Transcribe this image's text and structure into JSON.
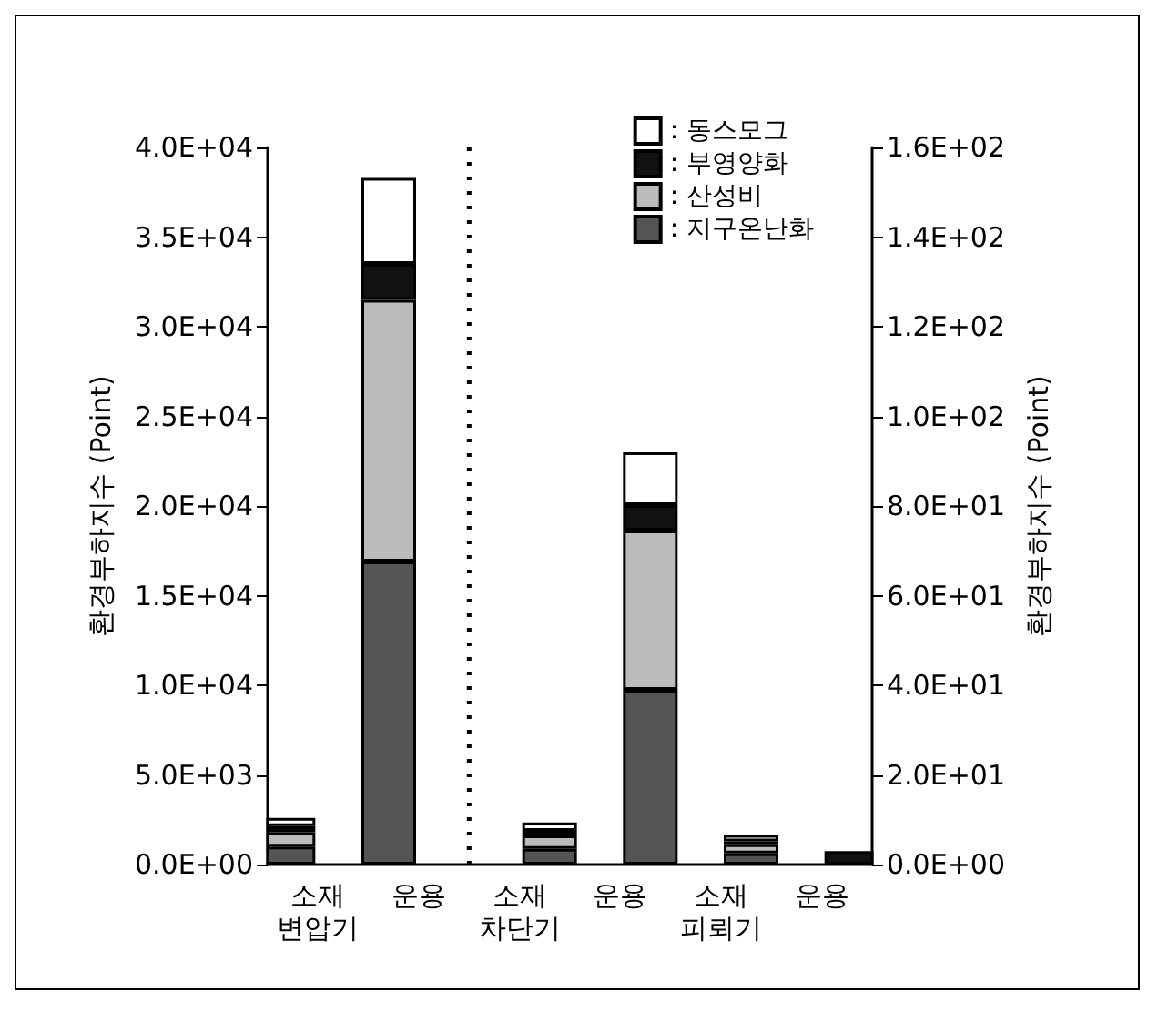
{
  "chart_data": {
    "type": "bar",
    "stacked": true,
    "ylabel": "환경부하지수 (Point)",
    "y2label": "환경부하지수 (Point)",
    "categories": [
      "소재\n변압기",
      "운용",
      "소재\n차단기",
      "운용",
      "소재\n피뢰기",
      "운용"
    ],
    "series": [
      {
        "name": ": 지구온난화",
        "color": "#555555",
        "values": [
          1000,
          16900,
          null,
          null,
          null,
          null
        ]
      },
      {
        "name": ": 산성비",
        "color": "#bbbbbb",
        "values": [
          800,
          14600,
          null,
          null,
          null,
          null
        ]
      },
      {
        "name": ": 부영양화",
        "color": "#111111",
        "values": [
          350,
          2000,
          null,
          null,
          null,
          null
        ]
      },
      {
        "name": ": 동스모그",
        "color": "#ffffff",
        "values": [
          450,
          4800,
          null,
          null,
          null,
          null
        ]
      },
      {
        "axis": "y2",
        "color": "#555555",
        "values": [
          null,
          null,
          3.5,
          39,
          2.5,
          null
        ]
      },
      {
        "axis": "y2",
        "color": "#bbbbbb",
        "values": [
          null,
          null,
          3.0,
          35.5,
          2.0,
          null
        ]
      },
      {
        "axis": "y2",
        "color": "#111111",
        "values": [
          null,
          null,
          1.0,
          5.7,
          0.7,
          3.0
        ]
      },
      {
        "axis": "y2",
        "color": "#ffffff",
        "values": [
          null,
          null,
          1.9,
          11.8,
          1.4,
          null
        ]
      }
    ],
    "ylim": [
      0,
      40000
    ],
    "yticks": [
      {
        "value": 0,
        "label": "0.0E+00"
      },
      {
        "value": 5000,
        "label": "5.0E+03"
      },
      {
        "value": 10000,
        "label": "1.0E+04"
      },
      {
        "value": 15000,
        "label": "1.5E+04"
      },
      {
        "value": 20000,
        "label": "2.0E+04"
      },
      {
        "value": 25000,
        "label": "2.5E+04"
      },
      {
        "value": 30000,
        "label": "3.0E+04"
      },
      {
        "value": 35000,
        "label": "3.5E+04"
      },
      {
        "value": 40000,
        "label": "4.0E+04"
      }
    ],
    "y2lim": [
      0,
      160
    ],
    "y2ticks": [
      {
        "value": 0,
        "label": "0.0E+00"
      },
      {
        "value": 20,
        "label": "2.0E+01"
      },
      {
        "value": 40,
        "label": "4.0E+01"
      },
      {
        "value": 60,
        "label": "6.0E+01"
      },
      {
        "value": 80,
        "label": "8.0E+01"
      },
      {
        "value": 100,
        "label": "1.0E+02"
      },
      {
        "value": 120,
        "label": "1.2E+02"
      },
      {
        "value": 140,
        "label": "1.4E+02"
      },
      {
        "value": 160,
        "label": "1.6E+02"
      }
    ],
    "legend": "top right",
    "grid": false
  }
}
